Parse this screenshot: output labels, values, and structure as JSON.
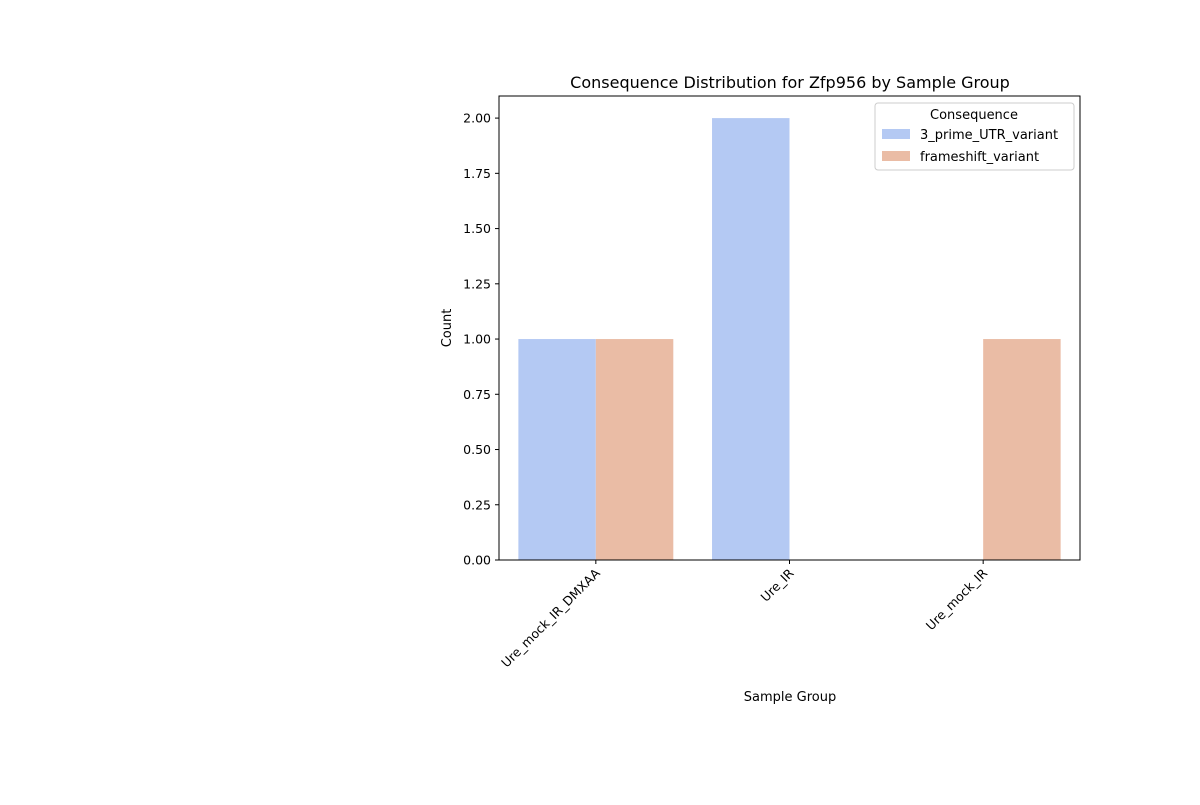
{
  "chart_data": {
    "type": "bar",
    "title": "Consequence Distribution for Zfp956 by Sample Group",
    "xlabel": "Sample Group",
    "ylabel": "Count",
    "categories": [
      "Ure_mock_IR_DMXAA",
      "Ure_IR",
      "Ure_mock_IR"
    ],
    "series": [
      {
        "name": "3_prime_UTR_variant",
        "color": "#b4c9f3",
        "values": [
          1,
          2,
          0
        ]
      },
      {
        "name": "frameshift_variant",
        "color": "#eabca5",
        "values": [
          1,
          0,
          1
        ]
      }
    ],
    "ylim": [
      0,
      2.1
    ],
    "yticks": [
      "0.00",
      "0.25",
      "0.50",
      "0.75",
      "1.00",
      "1.25",
      "1.50",
      "1.75",
      "2.00"
    ],
    "legend": {
      "title": "Consequence",
      "placement": "top-right"
    },
    "grid": false
  }
}
